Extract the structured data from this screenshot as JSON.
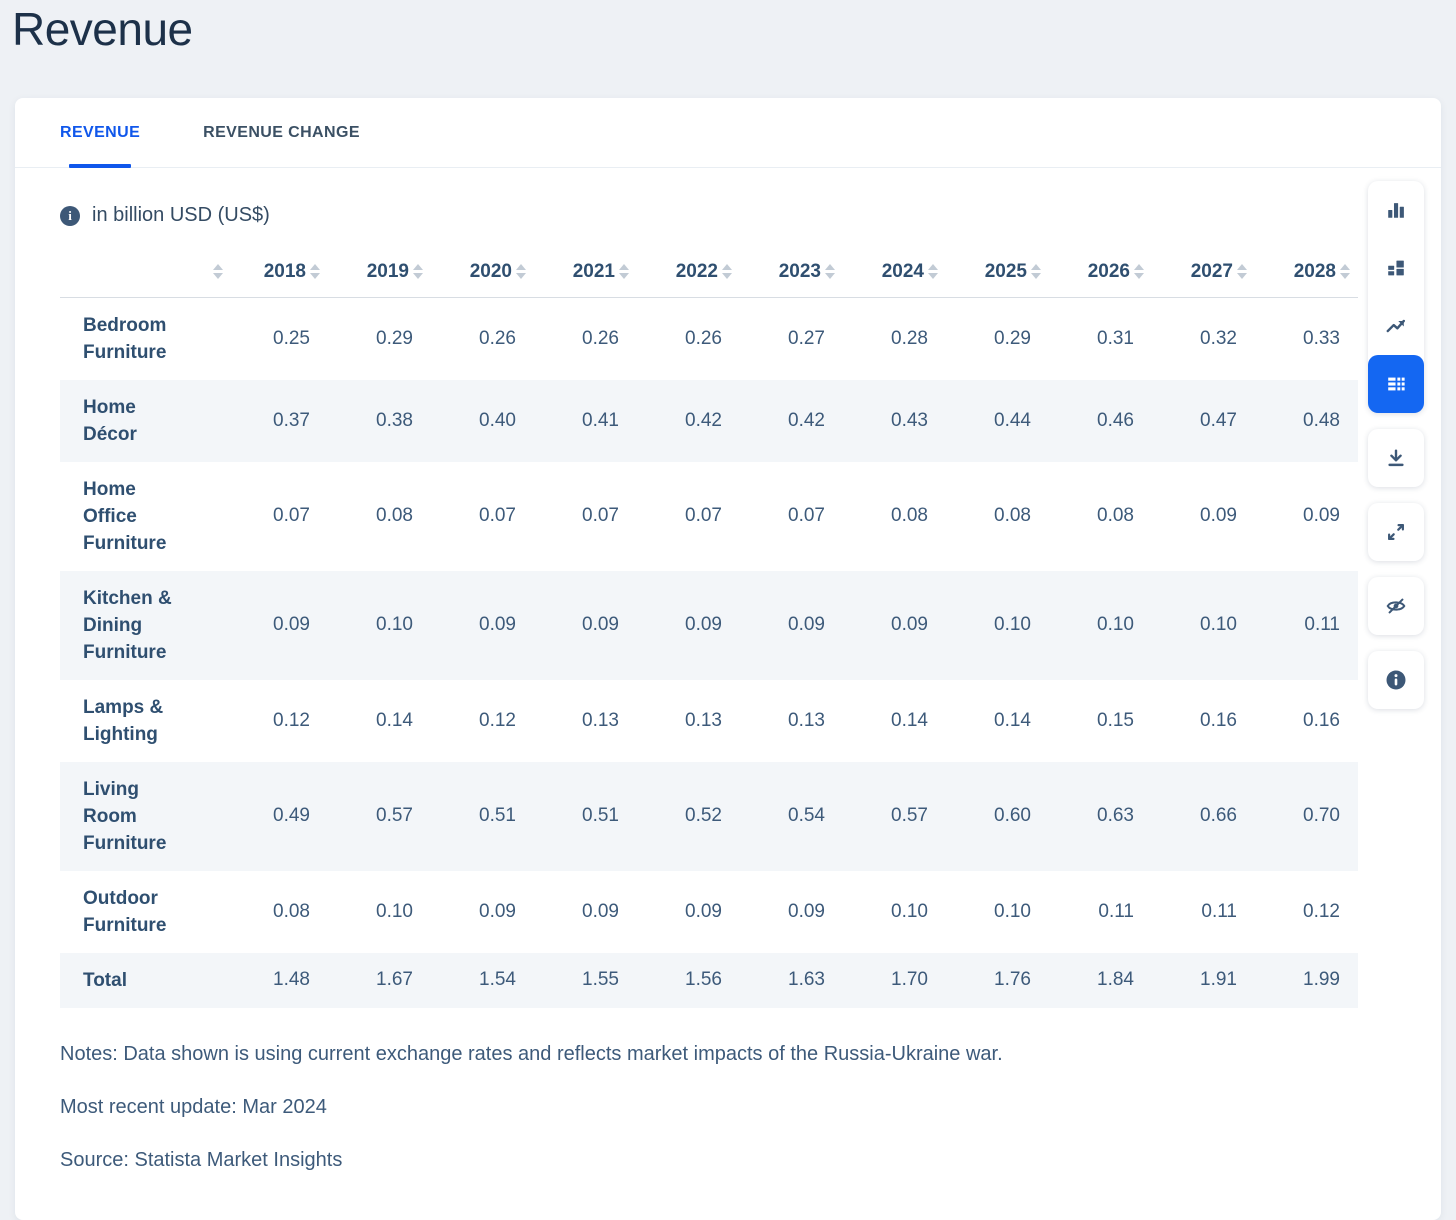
{
  "page_title": "Revenue",
  "tabs": [
    {
      "label": "REVENUE",
      "active": true
    },
    {
      "label": "REVENUE CHANGE",
      "active": false
    }
  ],
  "unit_note": "in billion USD (US$)",
  "table": {
    "years": [
      "2018",
      "2019",
      "2020",
      "2021",
      "2022",
      "2023",
      "2024",
      "2025",
      "2026",
      "2027",
      "2028"
    ],
    "rows": [
      {
        "label": "Bedroom Furniture",
        "values": [
          "0.25",
          "0.29",
          "0.26",
          "0.26",
          "0.26",
          "0.27",
          "0.28",
          "0.29",
          "0.31",
          "0.32",
          "0.33"
        ]
      },
      {
        "label": "Home Décor",
        "values": [
          "0.37",
          "0.38",
          "0.40",
          "0.41",
          "0.42",
          "0.42",
          "0.43",
          "0.44",
          "0.46",
          "0.47",
          "0.48"
        ]
      },
      {
        "label": "Home Office Furniture",
        "values": [
          "0.07",
          "0.08",
          "0.07",
          "0.07",
          "0.07",
          "0.07",
          "0.08",
          "0.08",
          "0.08",
          "0.09",
          "0.09"
        ]
      },
      {
        "label": "Kitchen & Dining Furniture",
        "values": [
          "0.09",
          "0.10",
          "0.09",
          "0.09",
          "0.09",
          "0.09",
          "0.09",
          "0.10",
          "0.10",
          "0.10",
          "0.11"
        ]
      },
      {
        "label": "Lamps & Lighting",
        "values": [
          "0.12",
          "0.14",
          "0.12",
          "0.13",
          "0.13",
          "0.13",
          "0.14",
          "0.14",
          "0.15",
          "0.16",
          "0.16"
        ]
      },
      {
        "label": "Living Room Furniture",
        "values": [
          "0.49",
          "0.57",
          "0.51",
          "0.51",
          "0.52",
          "0.54",
          "0.57",
          "0.60",
          "0.63",
          "0.66",
          "0.70"
        ]
      },
      {
        "label": "Outdoor Furniture",
        "values": [
          "0.08",
          "0.10",
          "0.09",
          "0.09",
          "0.09",
          "0.09",
          "0.10",
          "0.10",
          "0.11",
          "0.11",
          "0.12"
        ]
      },
      {
        "label": "Total",
        "values": [
          "1.48",
          "1.67",
          "1.54",
          "1.55",
          "1.56",
          "1.63",
          "1.70",
          "1.76",
          "1.84",
          "1.91",
          "1.99"
        ],
        "is_total": true
      }
    ]
  },
  "footer": {
    "notes": "Notes: Data shown is using current exchange rates and reflects market impacts of the Russia-Ukraine war.",
    "update": "Most recent update: Mar 2024",
    "source": "Source: Statista Market Insights"
  },
  "toolbar": {
    "view_buttons": [
      {
        "button": "bar-chart-view-button",
        "icon": "bar-chart-icon",
        "active": false
      },
      {
        "button": "stacked-chart-view-button",
        "icon": "stacked-bar-chart-icon",
        "active": false
      },
      {
        "button": "line-chart-view-button",
        "icon": "line-chart-icon",
        "active": false
      },
      {
        "button": "table-view-button",
        "icon": "table-view-icon",
        "active": true
      }
    ],
    "action_buttons": [
      {
        "button": "download-button",
        "icon": "download-icon"
      },
      {
        "button": "expand-button",
        "icon": "expand-icon"
      },
      {
        "button": "hide-button",
        "icon": "eye-off-icon"
      },
      {
        "button": "info-button",
        "icon": "info-icon"
      }
    ]
  },
  "colors": {
    "accent_blue": "#1057eb",
    "active_view_button_blue": "#1467f2",
    "heading_navy": "#1d3149",
    "table_text_slate": "#3d5a7a",
    "row_label_navy": "#2f4f70",
    "alt_row_background": "#f3f6f9",
    "icon_slate": "#3d5877",
    "page_background": "#eef1f5"
  }
}
